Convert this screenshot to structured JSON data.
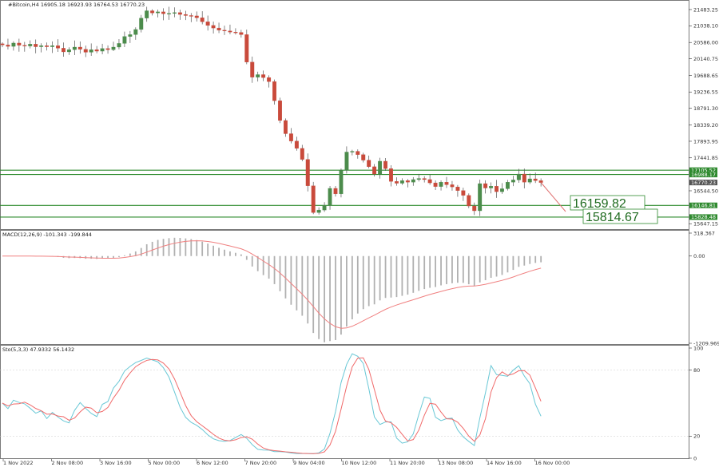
{
  "chart_data": [
    {
      "type": "candlestick",
      "title": "#Bitcoin,H4  16905.18 16923.93 16764.53 16770.23",
      "ylim": [
        15500,
        21700
      ],
      "price_ticks": [
        "21483.25",
        "21038.10",
        "20586.00",
        "20140.75",
        "19688.65",
        "19236.55",
        "18791.30",
        "18339.20",
        "17893.95",
        "17441.85",
        "16544.50",
        "15647.15"
      ],
      "levels": [
        {
          "label": "17105.52",
          "value": 17105.52,
          "color": "#2e8b2e"
        },
        {
          "label": "16988.17",
          "value": 16988.17,
          "color": "#2e8b2e"
        },
        {
          "label": "16146.81",
          "value": 16146.81,
          "color": "#2e8b2e"
        },
        {
          "label": "15828.48",
          "value": 15828.48,
          "color": "#2e8b2e"
        }
      ],
      "current_price": "16770.23",
      "annotations": [
        "16159.82",
        "15814.67"
      ],
      "x_labels": [
        "1 Nov 2022",
        "2 Nov 08:00",
        "3 Nov 16:00",
        "5 Nov 00:00",
        "6 Nov 12:00",
        "7 Nov 20:00",
        "9 Nov 04:00",
        "10 Nov 12:00",
        "11 Nov 20:00",
        "13 Nov 08:00",
        "14 Nov 16:00",
        "16 Nov 00:00"
      ],
      "up_color": "#4c8c4c",
      "down_color": "#c94a3b",
      "closes": [
        20520,
        20480,
        20570,
        20510,
        20490,
        20540,
        20470,
        20500,
        20470,
        20500,
        20430,
        20330,
        20390,
        20460,
        20400,
        20320,
        20390,
        20350,
        20420,
        20390,
        20460,
        20560,
        20750,
        20800,
        20940,
        21250,
        21450,
        21390,
        21420,
        21370,
        21380,
        21400,
        21350,
        21320,
        21310,
        21260,
        21150,
        21050,
        20980,
        20920,
        20900,
        20870,
        20860,
        20800,
        20050,
        19640,
        19710,
        19630,
        19520,
        19000,
        18460,
        18100,
        17900,
        17700,
        17400,
        16680,
        15950,
        16020,
        16150,
        16610,
        16460,
        17100,
        17600,
        17620,
        17530,
        17380,
        17200,
        17000,
        17350,
        17150,
        16800,
        16750,
        16820,
        16780,
        16850,
        16880,
        16850,
        16760,
        16660,
        16780,
        16710,
        16650,
        16550,
        16420,
        16130,
        16000,
        16740,
        16620,
        16670,
        16520,
        16600,
        16780,
        16840,
        17000,
        16780,
        16870,
        16820,
        16770
      ],
      "price_source": "estimated"
    },
    {
      "type": "histogram+line",
      "title": "MACD(12,26,9) -101.343 -199.844",
      "ylim": [
        -1209.969,
        318.367
      ],
      "y_ticks": [
        "318.367",
        "0.00",
        "-1209.969"
      ],
      "histogram_color": "#b0b0b0",
      "signal_color": "#f08080"
    },
    {
      "type": "line",
      "title": "Sto(5,3,3) 47.9332 56.1432",
      "ylim": [
        0,
        100
      ],
      "y_ticks": [
        "100",
        "80",
        "20",
        "0"
      ],
      "main_color": "#6ac8d6",
      "signal_color": "#f06a6a"
    }
  ]
}
